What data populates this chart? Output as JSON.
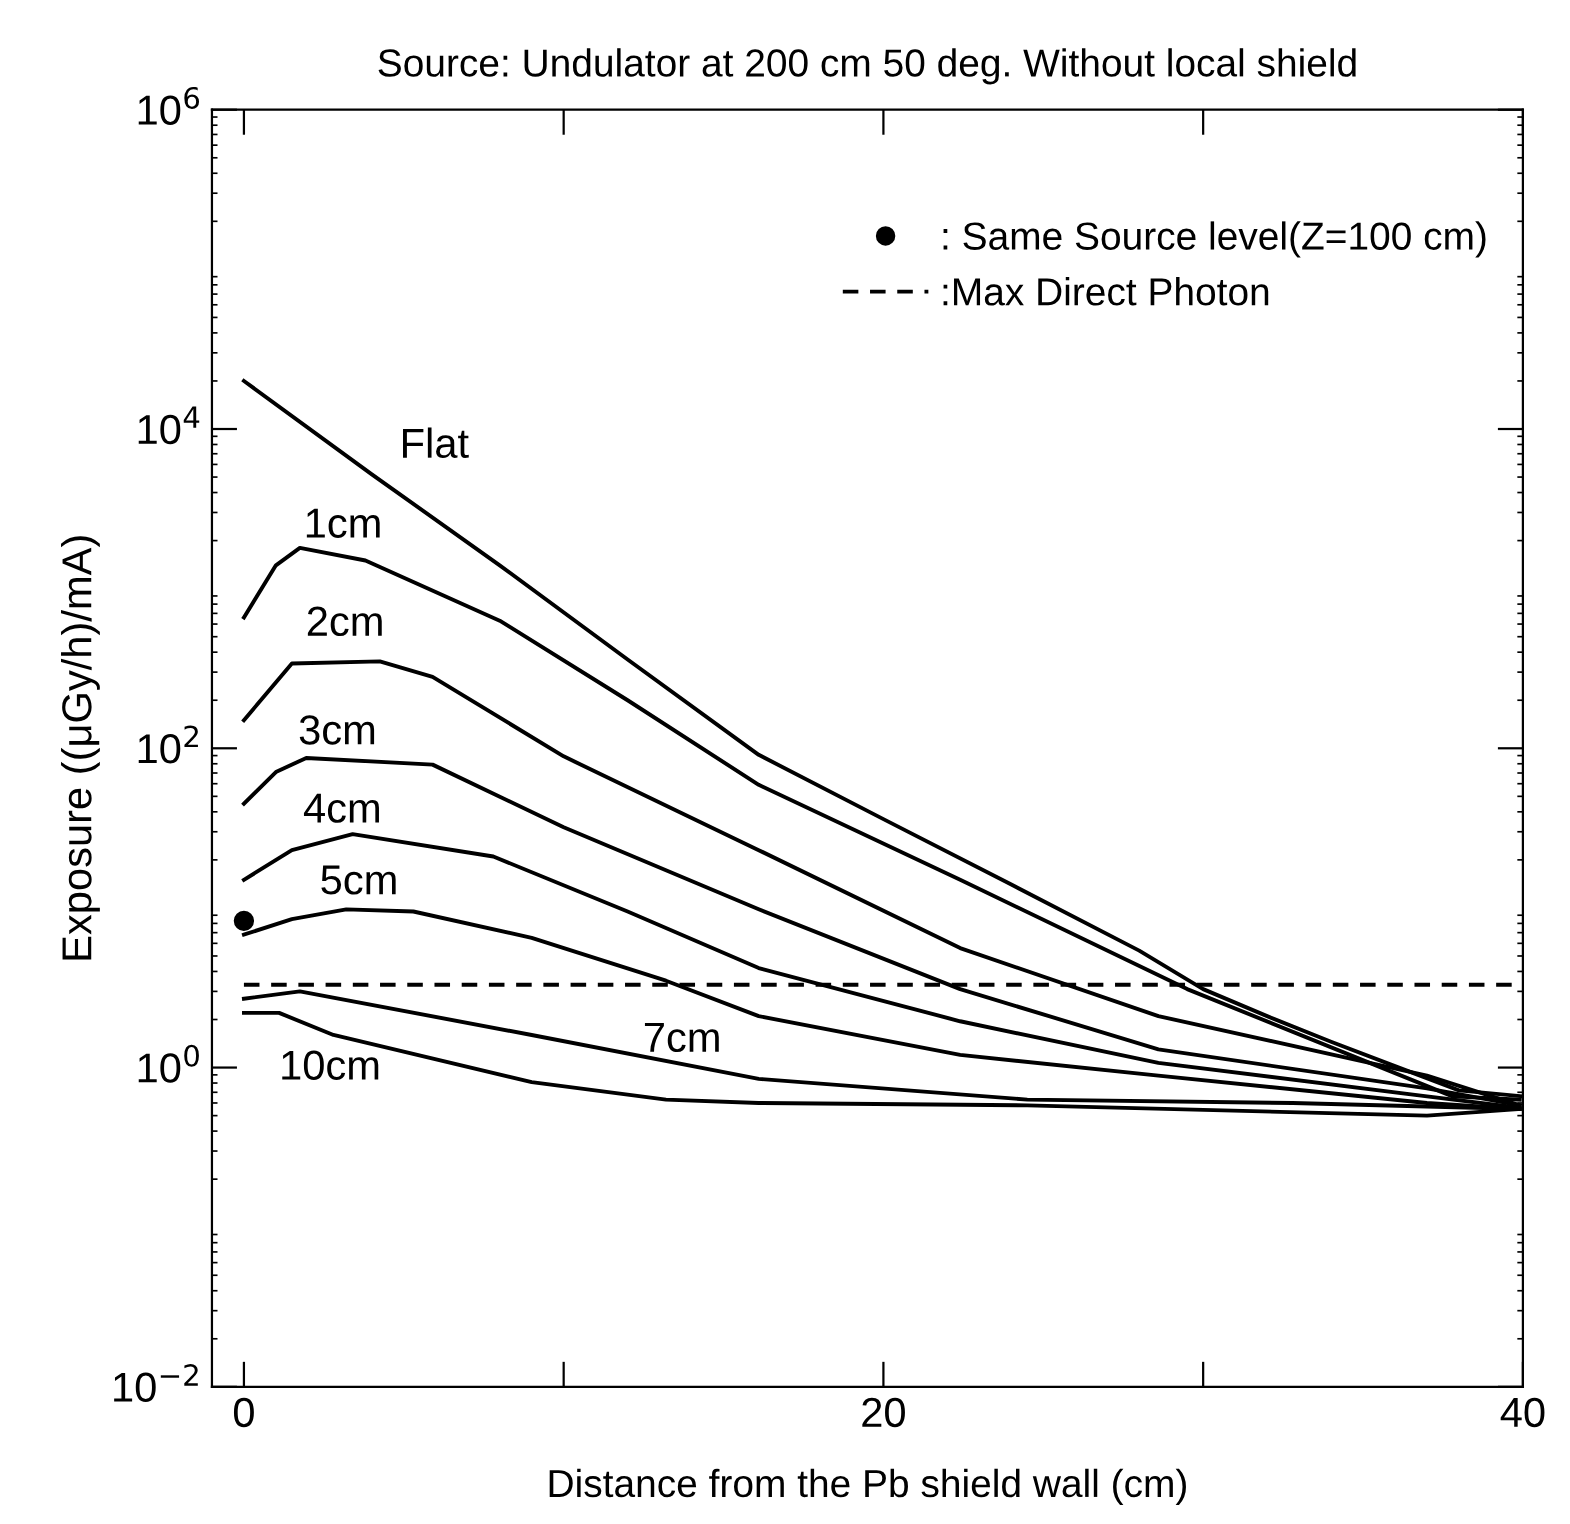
{
  "chart_data": {
    "type": "line",
    "title": "Source: Undulator at 200 cm 50 deg. Without local shield",
    "xlabel": "Distance from the Pb shield wall (cm)",
    "ylabel": "Exposure ((μGy/h)/mA)",
    "log": "y",
    "xlim": [
      -1,
      40
    ],
    "ylim": [
      0.01,
      1000000
    ],
    "xticks": [
      0,
      {
        "value": 10,
        "label": null
      },
      20,
      {
        "value": 30,
        "label": null
      },
      40
    ],
    "yticks": [
      {
        "value": 0.01,
        "label": "10$^{−2}$"
      },
      {
        "value": 1,
        "label": "10$^{0}$"
      },
      {
        "value": 100,
        "label": "10$^{2}$"
      },
      {
        "value": 10000,
        "label": "10$^{4}$"
      },
      {
        "value": 1000000,
        "label": "10$^{6}$"
      }
    ],
    "grid": false,
    "legend": "top right",
    "color": "#000000",
    "series": [
      {
        "name": "Flat",
        "x": [
          0,
          4,
          8,
          12,
          16.1,
          20,
          24,
          28,
          30,
          32,
          34,
          36,
          38,
          40
        ],
        "values": [
          20000,
          5200,
          1400,
          360,
          91,
          36,
          14,
          5.4,
          3.1,
          2.1,
          1.45,
          1.02,
          0.72,
          0.66
        ]
      },
      {
        "name": "1cm",
        "x": [
          0,
          1,
          1.75,
          3.8,
          8,
          12,
          16.1,
          22.4,
          29.5,
          37.8,
          39.9
        ],
        "values": [
          660,
          1400,
          1800,
          1500,
          630,
          200,
          59,
          15,
          3.1,
          0.66,
          0.63
        ]
      },
      {
        "name": "2cm",
        "x": [
          0,
          1.5,
          4.25,
          5.9,
          10,
          16.1,
          22.4,
          28.6,
          37,
          39.9
        ],
        "values": [
          150,
          340,
          350,
          280,
          89,
          23,
          5.6,
          2.1,
          0.89,
          0.58
        ]
      },
      {
        "name": "3cm",
        "x": [
          0,
          1,
          1.95,
          5.9,
          10,
          16.1,
          22.4,
          28.6,
          37,
          39.9
        ],
        "values": [
          45,
          71,
          87,
          79,
          32,
          9.8,
          3.1,
          1.3,
          0.74,
          0.58
        ]
      },
      {
        "name": "4cm",
        "x": [
          0,
          1.5,
          3.4,
          7.8,
          12,
          16.1,
          22.4,
          28.6,
          37,
          39.9
        ],
        "values": [
          15,
          23,
          29,
          21,
          9.5,
          4.2,
          1.95,
          1.07,
          0.66,
          0.56
        ]
      },
      {
        "name": "5cm",
        "x": [
          0,
          1.5,
          3.2,
          5.3,
          9,
          13.2,
          16.1,
          22.4,
          28.6,
          37,
          39.9
        ],
        "values": [
          6.8,
          8.5,
          9.8,
          9.5,
          6.5,
          3.5,
          2.1,
          1.2,
          0.89,
          0.6,
          0.55
        ]
      },
      {
        "name": "7cm",
        "x": [
          0,
          1.75,
          9,
          16.1,
          24.5,
          32.8,
          39.9
        ],
        "values": [
          2.7,
          3.0,
          1.6,
          0.85,
          0.63,
          0.6,
          0.55
        ]
      },
      {
        "name": "10cm",
        "x": [
          0,
          1.1,
          2.8,
          9,
          13.2,
          16.1,
          24.5,
          37,
          39.9
        ],
        "values": [
          2.2,
          2.2,
          1.6,
          0.81,
          0.63,
          0.6,
          0.58,
          0.5,
          0.55
        ]
      },
      {
        "name": ": Same Source level(Z=100 cm)",
        "type": "scatter",
        "marker": "circle",
        "x": [
          0
        ],
        "values": [
          8.3
        ]
      },
      {
        "name": ":Max Direct Photon",
        "line_style": "dashed",
        "x": [
          0,
          40
        ],
        "values": [
          3.3,
          3.3
        ]
      }
    ]
  }
}
